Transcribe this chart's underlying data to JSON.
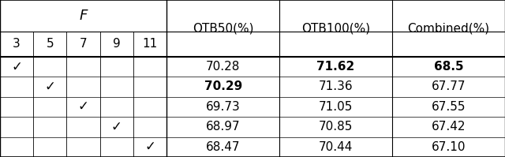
{
  "f_header": "F",
  "f_cols": [
    "3",
    "5",
    "7",
    "9",
    "11"
  ],
  "metric_cols": [
    "OTB50(%)",
    "OTB100(%)",
    "Combined(%)"
  ],
  "checkmarks": [
    [
      true,
      false,
      false,
      false,
      false
    ],
    [
      false,
      true,
      false,
      false,
      false
    ],
    [
      false,
      false,
      true,
      false,
      false
    ],
    [
      false,
      false,
      false,
      true,
      false
    ],
    [
      false,
      false,
      false,
      false,
      true
    ]
  ],
  "values": [
    [
      "70.28",
      "71.62",
      "68.5"
    ],
    [
      "70.29",
      "71.36",
      "67.77"
    ],
    [
      "69.73",
      "71.05",
      "67.55"
    ],
    [
      "68.97",
      "70.85",
      "67.42"
    ],
    [
      "68.47",
      "70.44",
      "67.10"
    ]
  ],
  "bold": [
    [
      false,
      true,
      true
    ],
    [
      true,
      false,
      false
    ],
    [
      false,
      false,
      false
    ],
    [
      false,
      false,
      false
    ],
    [
      false,
      false,
      false
    ]
  ],
  "bg_color": "#ffffff",
  "line_color": "#000000",
  "text_color": "#000000",
  "figsize": [
    6.4,
    1.99
  ],
  "dpi": 100
}
